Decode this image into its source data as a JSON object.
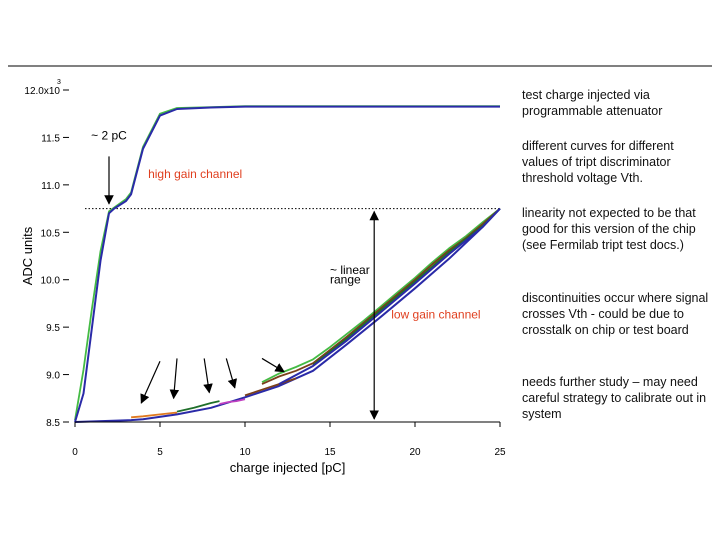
{
  "chart_data": {
    "type": "line",
    "xlabel": "charge injected [pC]",
    "ylabel": "ADC units",
    "xlim": [
      0,
      25
    ],
    "ylim": [
      8450,
      12050
    ],
    "x_ticks": [
      {
        "value": 0,
        "label": "0"
      },
      {
        "value": 5,
        "label": "5"
      },
      {
        "value": 10,
        "label": "10"
      },
      {
        "value": 15,
        "label": "15"
      },
      {
        "value": 20,
        "label": "20"
      },
      {
        "value": 25,
        "label": "25"
      }
    ],
    "y_ticks": [
      {
        "value": 8500,
        "label": "8.5"
      },
      {
        "value": 9000,
        "label": "9.0"
      },
      {
        "value": 9500,
        "label": "9.5"
      },
      {
        "value": 10000,
        "label": "10.0"
      },
      {
        "value": 10500,
        "label": "10.5"
      },
      {
        "value": 11000,
        "label": "11.0"
      },
      {
        "value": 11500,
        "label": "11.5"
      },
      {
        "value": 12000,
        "label": "12.0x10"
      }
    ],
    "y_exponent": "3",
    "threshold_line_y": 10750,
    "colors": {
      "blue": "#2a2aa8",
      "green": "#44bb44",
      "orange": "#e07a20",
      "dark_green": "#1f6f2a",
      "magenta": "#c040c0",
      "brown": "#7a3f1a"
    },
    "series": [
      {
        "color": "green",
        "x": [
          0,
          0.5,
          1,
          1.5,
          2,
          2.3,
          3,
          3.3,
          4,
          5,
          6,
          8,
          10,
          14,
          25
        ],
        "y": [
          8520,
          9050,
          9700,
          10300,
          10720,
          10760,
          10850,
          10920,
          11400,
          11750,
          11810,
          11820,
          11830,
          11830,
          11830
        ]
      },
      {
        "color": "blue",
        "x": [
          0,
          0.5,
          1,
          1.5,
          2,
          2.3,
          3,
          3.3,
          4,
          5,
          6,
          8,
          10,
          14,
          25
        ],
        "y": [
          8500,
          8800,
          9500,
          10200,
          10700,
          10750,
          10830,
          10900,
          11380,
          11730,
          11800,
          11815,
          11825,
          11825,
          11825
        ]
      },
      {
        "color": "blue",
        "x": [
          0,
          3.3,
          4,
          6,
          8,
          10,
          12,
          14,
          16,
          18,
          20,
          22,
          24,
          25
        ],
        "y": [
          8500,
          8520,
          8530,
          8580,
          8650,
          8760,
          8880,
          9040,
          9320,
          9610,
          9910,
          10220,
          10560,
          10750
        ]
      },
      {
        "color": "orange",
        "x": [
          3.3,
          4,
          5,
          6
        ],
        "y": [
          8550,
          8560,
          8580,
          8600
        ]
      },
      {
        "color": "dark_green",
        "x": [
          6,
          7,
          8,
          8.5
        ],
        "y": [
          8610,
          8650,
          8700,
          8720
        ]
      },
      {
        "color": "magenta",
        "x": [
          8.5,
          9,
          9.5,
          10
        ],
        "y": [
          8690,
          8710,
          8720,
          8740
        ]
      },
      {
        "color": "brown",
        "x": [
          10,
          11,
          12,
          13
        ],
        "y": [
          8780,
          8840,
          8900,
          8960
        ]
      },
      {
        "color": "green",
        "x": [
          11,
          12,
          13,
          14,
          15,
          16,
          17,
          18,
          19,
          20,
          21,
          22,
          23,
          24,
          25
        ],
        "y": [
          8920,
          9010,
          9080,
          9160,
          9290,
          9430,
          9570,
          9720,
          9870,
          10020,
          10180,
          10330,
          10460,
          10610,
          10750
        ]
      },
      {
        "color": "brown",
        "x": [
          11,
          12,
          13,
          14,
          15,
          16,
          17,
          18,
          19,
          20,
          21,
          22,
          23,
          24,
          25
        ],
        "y": [
          8900,
          8980,
          9040,
          9120,
          9260,
          9400,
          9550,
          9700,
          9850,
          10000,
          10160,
          10310,
          10440,
          10590,
          10750
        ]
      },
      {
        "color": "dark_green",
        "x": [
          14,
          16,
          18,
          20,
          22,
          24,
          25
        ],
        "y": [
          9100,
          9380,
          9680,
          9980,
          10290,
          10570,
          10750
        ]
      },
      {
        "color": "blue",
        "x": [
          12,
          14,
          16,
          18,
          20,
          22,
          24,
          25
        ],
        "y": [
          8900,
          9090,
          9360,
          9660,
          9960,
          10270,
          10560,
          10750
        ]
      }
    ],
    "annotations": [
      {
        "text": "~ 2 pC",
        "x": 2.0,
        "y": 11480,
        "anchor": "middle"
      },
      {
        "text": "high gain channel",
        "x": 4.3,
        "y": 11070,
        "anchor": "start",
        "color": "#e04020"
      },
      {
        "text": "~ linear",
        "x": 15.0,
        "y": 10060,
        "anchor": "start"
      },
      {
        "text": "range",
        "x": 15.0,
        "y": 9960,
        "anchor": "start"
      },
      {
        "text": "low gain channel",
        "x": 18.6,
        "y": 9590,
        "anchor": "start",
        "color": "#e04020"
      }
    ],
    "arrows": [
      {
        "from": [
          2.0,
          11300
        ],
        "to": [
          2.0,
          10800
        ]
      },
      {
        "from": [
          5.0,
          9140
        ],
        "to": [
          3.9,
          8700
        ]
      },
      {
        "from": [
          6.0,
          9170
        ],
        "to": [
          5.8,
          8750
        ]
      },
      {
        "from": [
          7.6,
          9170
        ],
        "to": [
          7.9,
          8810
        ]
      },
      {
        "from": [
          8.9,
          9170
        ],
        "to": [
          9.4,
          8860
        ]
      },
      {
        "from": [
          11.0,
          9170
        ],
        "to": [
          12.3,
          9030
        ]
      }
    ],
    "range_arrow": {
      "x": 17.6,
      "y_top": 10760,
      "y_bottom": 8490
    }
  },
  "notes": [
    "test charge injected via programmable attenuator",
    "different curves for different values of tript discriminator threshold voltage Vth.",
    "linearity not expected to be that good for this version of the chip (see Fermilab tript test docs.)",
    "discontinuities occur where signal crosses Vth - could be due to crosstalk on chip or test board",
    "needs further study – may need careful strategy to calibrate out in system"
  ]
}
